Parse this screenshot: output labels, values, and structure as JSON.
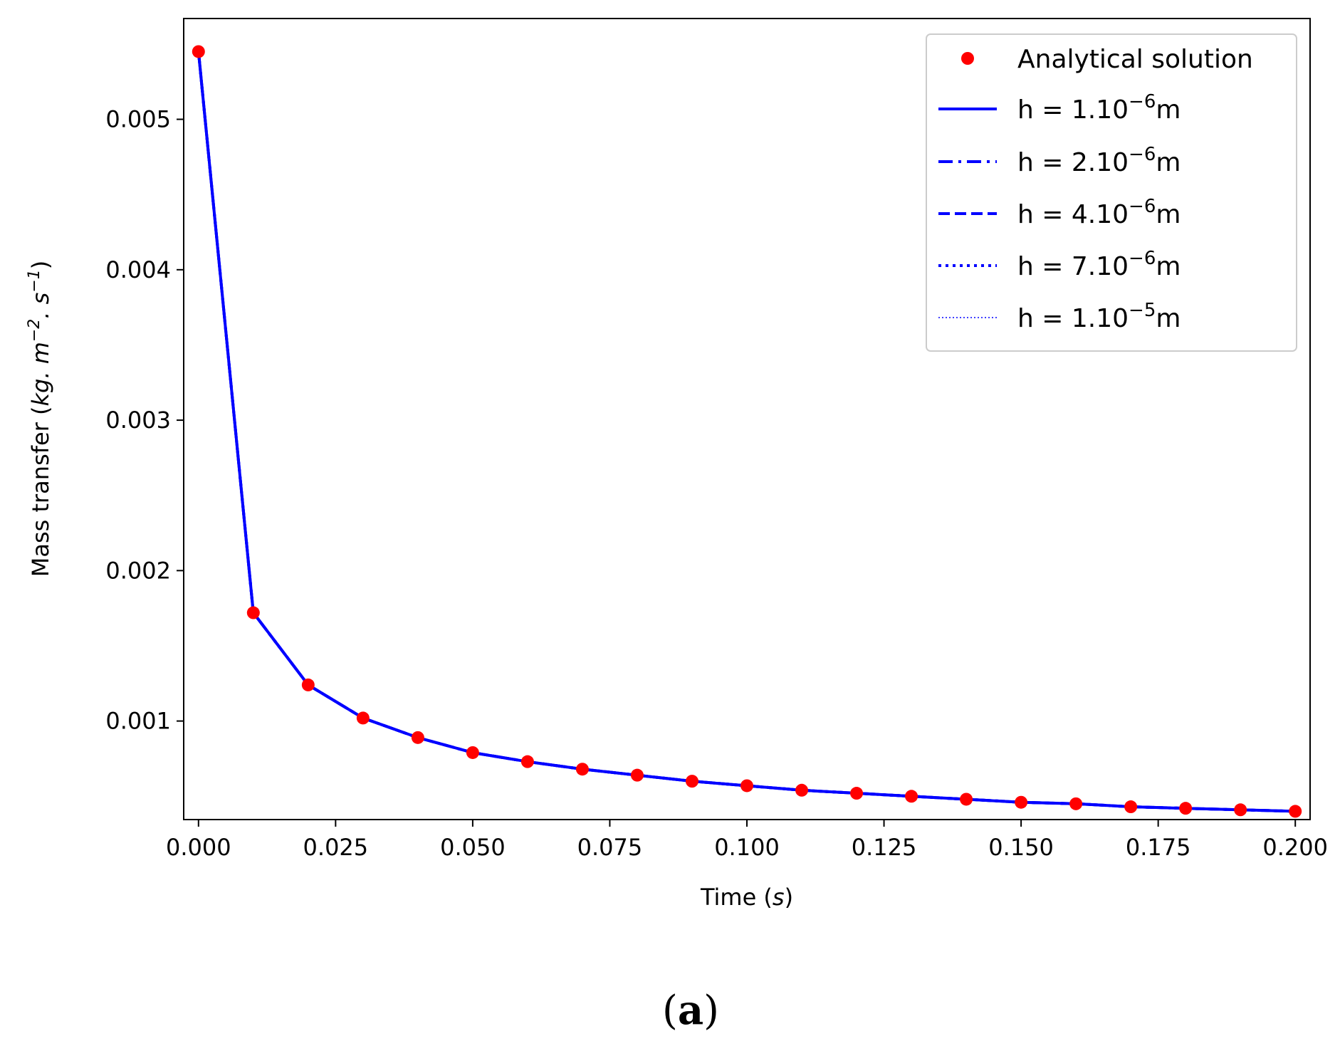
{
  "figure": {
    "panel_label_open": "(",
    "panel_label_letter": "a",
    "panel_label_close": ")"
  },
  "chart_data": {
    "type": "line",
    "xlabel_main": "Time (",
    "xlabel_unit": "s",
    "xlabel_close": ")",
    "ylabel_main": "Mass transfer (",
    "ylabel_unit_kg": "kg. m",
    "ylabel_exp1": "−2",
    "ylabel_unit_s": ". s",
    "ylabel_exp2": "−1",
    "ylabel_close": ")",
    "xlim": [
      -0.0027,
      0.2027
    ],
    "ylim": [
      0.000345,
      0.00567
    ],
    "xticks": [
      0.0,
      0.025,
      0.05,
      0.075,
      0.1,
      0.125,
      0.15,
      0.175,
      0.2
    ],
    "xtick_labels": [
      "0.000",
      "0.025",
      "0.050",
      "0.075",
      "0.100",
      "0.125",
      "0.150",
      "0.175",
      "0.200"
    ],
    "yticks": [
      0.001,
      0.002,
      0.003,
      0.004,
      0.005
    ],
    "ytick_labels": [
      "0.001",
      "0.002",
      "0.003",
      "0.004",
      "0.005"
    ],
    "grid": false,
    "legend_position": "top-right",
    "colors": {
      "analytical": "#ff0000",
      "numerical": "#0000ff"
    },
    "x": [
      0.0,
      0.01,
      0.02,
      0.03,
      0.04,
      0.05,
      0.06,
      0.07,
      0.08,
      0.09,
      0.1,
      0.11,
      0.12,
      0.13,
      0.14,
      0.15,
      0.16,
      0.17,
      0.18,
      0.19,
      0.2
    ],
    "series": [
      {
        "name": "Analytical solution",
        "style": "markers",
        "values": [
          0.00545,
          0.00172,
          0.00124,
          0.00102,
          0.00089,
          0.00079,
          0.00073,
          0.00068,
          0.00064,
          0.0006,
          0.00057,
          0.00054,
          0.00052,
          0.0005,
          0.00048,
          0.00046,
          0.00045,
          0.00043,
          0.00042,
          0.00041,
          0.0004
        ]
      },
      {
        "name_base": "h = 1.10",
        "name_exp": "−6",
        "name_unit": "m",
        "style": "solid",
        "values": [
          0.00545,
          0.00172,
          0.00124,
          0.00102,
          0.00089,
          0.00079,
          0.00073,
          0.00068,
          0.00064,
          0.0006,
          0.00057,
          0.00054,
          0.00052,
          0.0005,
          0.00048,
          0.00046,
          0.00045,
          0.00043,
          0.00042,
          0.00041,
          0.0004
        ]
      },
      {
        "name_base": "h = 2.10",
        "name_exp": "−6",
        "name_unit": "m",
        "style": "dashdot",
        "values": [
          0.00545,
          0.00172,
          0.00124,
          0.00102,
          0.00089,
          0.00079,
          0.00073,
          0.00068,
          0.00064,
          0.0006,
          0.00057,
          0.00054,
          0.00052,
          0.0005,
          0.00048,
          0.00046,
          0.00045,
          0.00043,
          0.00042,
          0.00041,
          0.0004
        ]
      },
      {
        "name_base": "h = 4.10",
        "name_exp": "−6",
        "name_unit": "m",
        "style": "dashed",
        "values": [
          0.00545,
          0.00172,
          0.00124,
          0.00102,
          0.00089,
          0.00079,
          0.00073,
          0.00068,
          0.00064,
          0.0006,
          0.00057,
          0.00054,
          0.00052,
          0.0005,
          0.00048,
          0.00046,
          0.00045,
          0.00043,
          0.00042,
          0.00041,
          0.0004
        ]
      },
      {
        "name_base": "h = 7.10",
        "name_exp": "−6",
        "name_unit": "m",
        "style": "dotted",
        "values": [
          0.00545,
          0.00172,
          0.00124,
          0.00102,
          0.00089,
          0.00079,
          0.00073,
          0.00068,
          0.00064,
          0.0006,
          0.00057,
          0.00054,
          0.00052,
          0.0005,
          0.00048,
          0.00046,
          0.00045,
          0.00043,
          0.00042,
          0.00041,
          0.0004
        ]
      },
      {
        "name_base": "h = 1.10",
        "name_exp": "−5",
        "name_unit": "m",
        "style": "thin-dotted",
        "values": [
          0.00545,
          0.00172,
          0.00124,
          0.00102,
          0.00089,
          0.00079,
          0.00073,
          0.00068,
          0.00064,
          0.0006,
          0.00057,
          0.00054,
          0.00052,
          0.0005,
          0.00048,
          0.00046,
          0.00045,
          0.00043,
          0.00042,
          0.00041,
          0.0004
        ]
      }
    ]
  }
}
